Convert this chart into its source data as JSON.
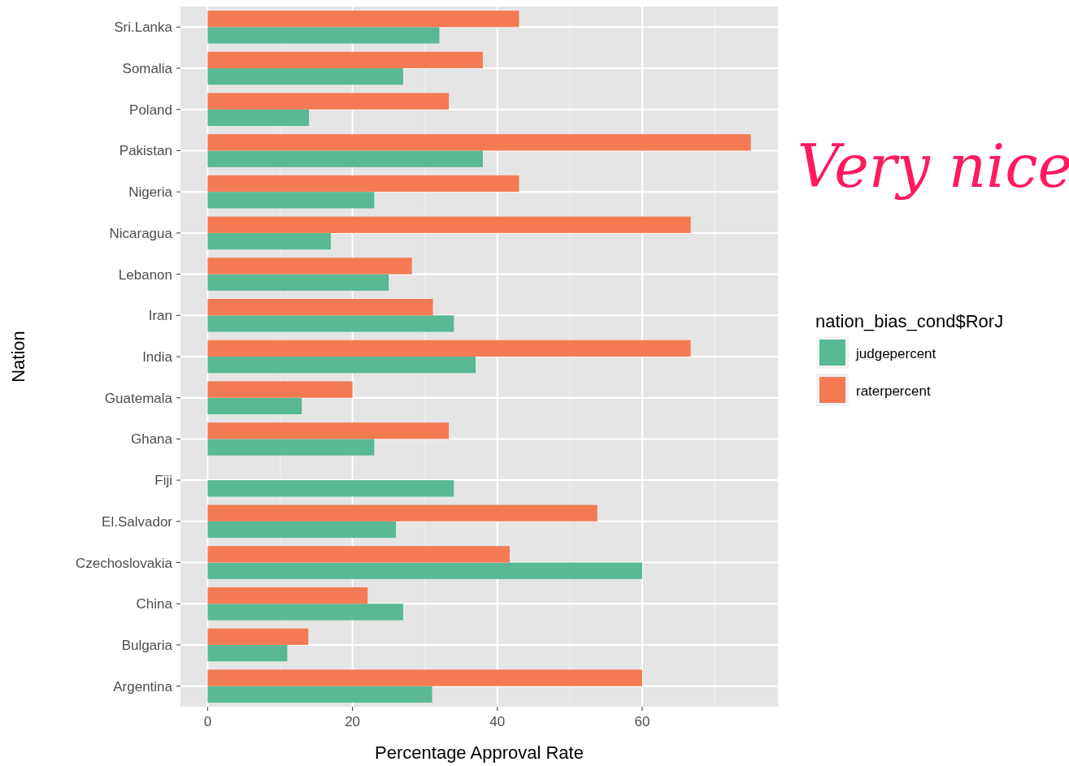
{
  "chart_data": {
    "type": "bar",
    "orientation": "horizontal",
    "xlabel": "Percentage Approval Rate",
    "ylabel": "Nation",
    "legend_title": "nation_bias_cond$RorJ",
    "categories": [
      "Sri.Lanka",
      "Somalia",
      "Poland",
      "Pakistan",
      "Nigeria",
      "Nicaragua",
      "Lebanon",
      "Iran",
      "India",
      "Guatemala",
      "Ghana",
      "Fiji",
      "El.Salvador",
      "Czechoslovakia",
      "China",
      "Bulgaria",
      "Argentina"
    ],
    "series": [
      {
        "name": "judgepercent",
        "color": "#58b994",
        "values": [
          32,
          27,
          14,
          38,
          23,
          17,
          25,
          34,
          37,
          13,
          23,
          34,
          26,
          60,
          27,
          11,
          31
        ]
      },
      {
        "name": "raterpercent",
        "color": "#f47a54",
        "values": [
          43,
          38,
          33.3,
          75,
          43,
          66.7,
          28.2,
          31.1,
          66.7,
          20,
          33.3,
          null,
          53.8,
          41.7,
          22.1,
          13.9,
          60
        ]
      }
    ],
    "xlim": [
      -3.75,
      78.75
    ],
    "xticks": [
      0,
      20,
      40,
      60
    ],
    "grid": true,
    "legend": "right",
    "annotations": [
      "Very nice"
    ]
  }
}
